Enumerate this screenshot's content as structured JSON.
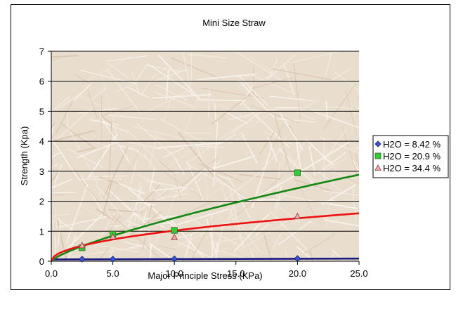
{
  "chart_data": {
    "type": "scatter",
    "title": "Mini Size Straw",
    "xlabel": "Major Principle Stress (KPa)",
    "ylabel": "Strength (Kpa)",
    "xlim": [
      0,
      25
    ],
    "ylim": [
      0,
      7
    ],
    "x_ticks": [
      "0.0",
      "5.0",
      "10.0",
      "15.0",
      "20.0",
      "25.0"
    ],
    "y_ticks": [
      "0",
      "1",
      "2",
      "3",
      "4",
      "5",
      "6",
      "7"
    ],
    "grid": "horizontal",
    "legend_position": "right",
    "plot_background": "straw fibre photo texture",
    "series": [
      {
        "name": "H2O = 8.42 %",
        "marker": "diamond",
        "color": "#3355dd",
        "line_color": "#1a1a80",
        "points": [
          [
            2.5,
            0.07
          ],
          [
            5.0,
            0.07
          ],
          [
            10.0,
            0.08
          ],
          [
            20.0,
            0.09
          ]
        ],
        "trend": [
          0.06,
          0.09
        ]
      },
      {
        "name": "H2O = 20.9 %",
        "marker": "square",
        "color": "#33cc33",
        "line_color": "#118811",
        "points": [
          [
            2.5,
            0.45
          ],
          [
            5.0,
            0.9
          ],
          [
            10.0,
            1.03
          ],
          [
            20.0,
            2.95
          ]
        ],
        "trend_power": {
          "a": 0.25,
          "b": 0.76
        }
      },
      {
        "name": "H2O = 34.4 %",
        "marker": "triangle",
        "color": "#ffaaaa",
        "line_color": "#ee1111",
        "points": [
          [
            2.5,
            0.53
          ],
          [
            5.0,
            0.82
          ],
          [
            10.0,
            0.8
          ],
          [
            20.0,
            1.5
          ]
        ],
        "trend_power": {
          "a": 0.33,
          "b": 0.49
        }
      }
    ]
  }
}
